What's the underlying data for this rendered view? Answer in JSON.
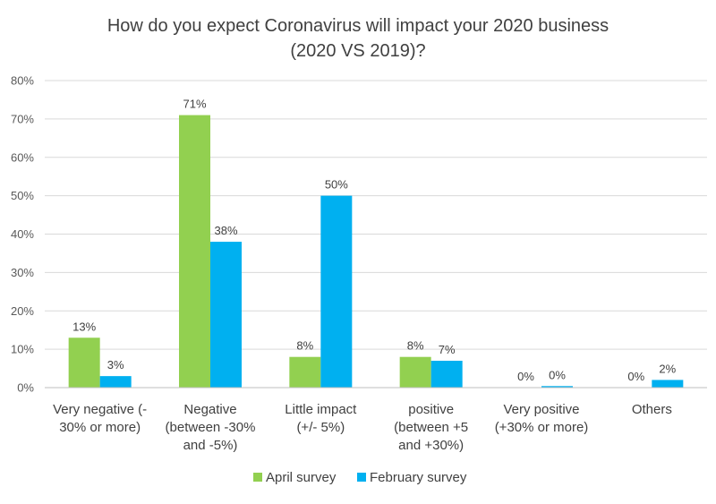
{
  "chart_data": {
    "type": "bar",
    "title": [
      "How do you expect Coronavirus will impact your 2020 business",
      "(2020 VS 2019)?"
    ],
    "categories": [
      [
        "Very negative (-",
        "30% or more)"
      ],
      [
        "Negative",
        "(between -30%",
        "and -5%)"
      ],
      [
        "Little impact",
        "(+/- 5%)"
      ],
      [
        "positive",
        "(between +5",
        "and +30%)"
      ],
      [
        "Very positive",
        "(+30% or more)"
      ],
      [
        "Others"
      ]
    ],
    "series": [
      {
        "name": "April survey",
        "color": "#92d050",
        "values": [
          13,
          71,
          8,
          8,
          0,
          0
        ],
        "labels": [
          "13%",
          "71%",
          "8%",
          "8%",
          "0%",
          "0%"
        ]
      },
      {
        "name": "February survey",
        "color": "#00b0f0",
        "values": [
          3,
          38,
          50,
          7,
          0.4,
          2
        ],
        "labels": [
          "3%",
          "38%",
          "50%",
          "7%",
          "0%",
          "2%"
        ]
      }
    ],
    "ylim": [
      0,
      80
    ],
    "yticks": [
      0,
      10,
      20,
      30,
      40,
      50,
      60,
      70,
      80
    ],
    "ytick_labels": [
      "0%",
      "10%",
      "20%",
      "30%",
      "40%",
      "50%",
      "60%",
      "70%",
      "80%"
    ],
    "grid": true,
    "legend_position": "bottom-center"
  }
}
